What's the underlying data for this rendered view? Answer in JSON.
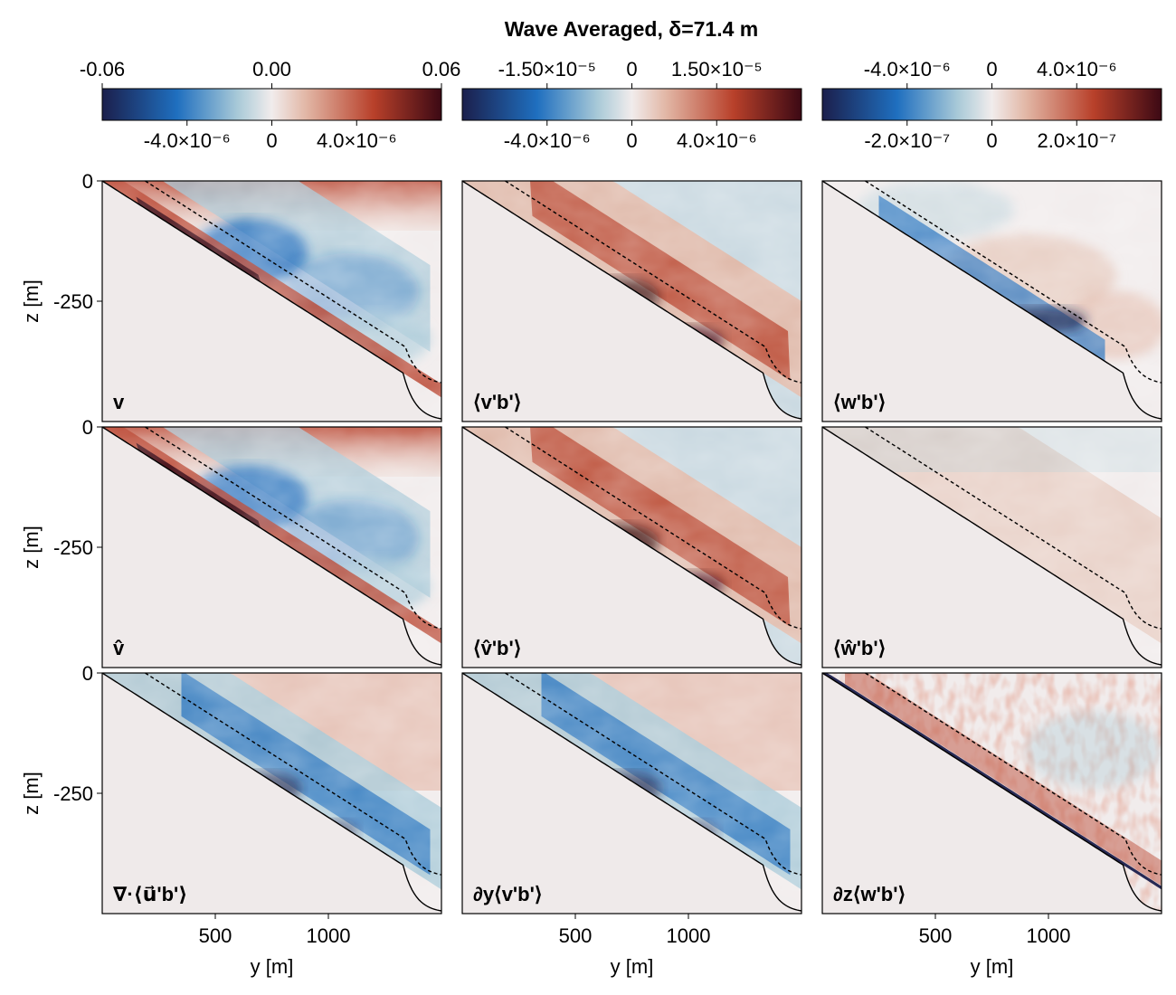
{
  "chart_data": {
    "type": "heatmap",
    "title": "Wave Averaged, δ=71.4 m",
    "xlabel": "y [m]",
    "ylabel": "z [m]",
    "xlim": [
      0,
      1500
    ],
    "ylim": [
      -500,
      0
    ],
    "x_ticks": [
      500,
      1000
    ],
    "y_ticks": [
      0,
      -250
    ],
    "colors": {
      "deep_blue": "#1b1f4c",
      "blue": "#1f6fbf",
      "light_blue": "#a9cad8",
      "neutral": "#f1ecec",
      "light_red": "#e2b7a6",
      "red": "#b8402a",
      "deep_red": "#3c0914",
      "slope_fill": "#efeaea"
    },
    "colorbars": [
      {
        "column": 1,
        "top_ticks": [
          "-0.06",
          "0.00",
          "0.06"
        ],
        "top_values": [
          -0.06,
          0.0,
          0.06
        ],
        "bottom_ticks": [
          "-4.0×10⁻⁶",
          "0",
          "4.0×10⁻⁶"
        ],
        "bottom_values": [
          -4e-06,
          0,
          4e-06
        ],
        "bottom_range": [
          -8e-06,
          8e-06
        ]
      },
      {
        "column": 2,
        "top_ticks": [
          "-1.50×10⁻⁵",
          "0",
          "1.50×10⁻⁵"
        ],
        "top_values": [
          -1.5e-05,
          0,
          1.5e-05
        ],
        "top_range": [
          -3e-05,
          3e-05
        ],
        "bottom_ticks": [
          "-4.0×10⁻⁶",
          "0",
          "4.0×10⁻⁶"
        ],
        "bottom_values": [
          -4e-06,
          0,
          4e-06
        ],
        "bottom_range": [
          -8e-06,
          8e-06
        ]
      },
      {
        "column": 3,
        "top_ticks": [
          "-4.0×10⁻⁶",
          "0",
          "4.0×10⁻⁶"
        ],
        "top_values": [
          -4e-06,
          0,
          4e-06
        ],
        "top_range": [
          -8e-06,
          8e-06
        ],
        "bottom_ticks": [
          "-2.0×10⁻⁷",
          "0",
          "2.0×10⁻⁷"
        ],
        "bottom_values": [
          -2e-07,
          0,
          2e-07
        ],
        "bottom_range": [
          -4e-07,
          4e-07
        ]
      }
    ],
    "panels": [
      {
        "row": 1,
        "col": 1,
        "label": "v",
        "pattern": "v"
      },
      {
        "row": 1,
        "col": 2,
        "label": "⟨v'b'⟩",
        "pattern": "vb"
      },
      {
        "row": 1,
        "col": 3,
        "label": "⟨w'b'⟩",
        "pattern": "wb"
      },
      {
        "row": 2,
        "col": 1,
        "label": "v̂",
        "pattern": "v"
      },
      {
        "row": 2,
        "col": 2,
        "label": "⟨v̂'b'⟩",
        "pattern": "vb"
      },
      {
        "row": 2,
        "col": 3,
        "label": "⟨ŵ'b'⟩",
        "pattern": "wbhat"
      },
      {
        "row": 3,
        "col": 1,
        "label": "∇·⟨u⃗'b'⟩",
        "pattern": "div"
      },
      {
        "row": 3,
        "col": 2,
        "label": "∂y⟨v'b'⟩",
        "pattern": "div"
      },
      {
        "row": 3,
        "col": 3,
        "label": "∂z⟨w'b'⟩",
        "pattern": "dz"
      }
    ],
    "lines": [
      {
        "name": "bottom",
        "style": "solid"
      },
      {
        "name": "delta-offset",
        "style": "dashed"
      }
    ]
  }
}
